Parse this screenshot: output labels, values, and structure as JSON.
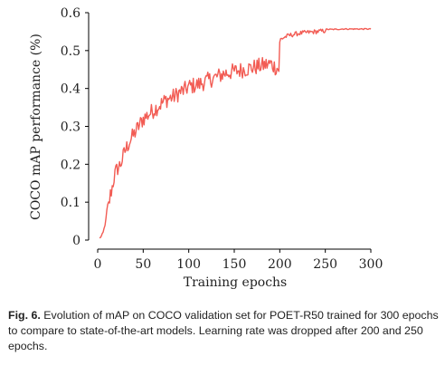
{
  "chart_data": {
    "type": "line",
    "xlabel": "Training epochs",
    "ylabel": "COCO mAP performance (%)",
    "xlim": [
      0,
      300
    ],
    "ylim": [
      0,
      0.6
    ],
    "x_ticks": [
      "0",
      "50",
      "100",
      "150",
      "200",
      "250",
      "300"
    ],
    "y_ticks": [
      "0",
      "0.1",
      "0.2",
      "0.3",
      "0.4",
      "0.5",
      "0.6"
    ],
    "grid": false,
    "line_color": "#f25c54",
    "series": [
      {
        "x": [
          2,
          4,
          6,
          8,
          10,
          12,
          14,
          16,
          18,
          20,
          22,
          25,
          28,
          30,
          35,
          40,
          45,
          50,
          55,
          60,
          65,
          70,
          75,
          80,
          85,
          90,
          95,
          100,
          110,
          120,
          130,
          140,
          150,
          160,
          170,
          180,
          190,
          199,
          200,
          201,
          205,
          210,
          220,
          230,
          240,
          250,
          251,
          260,
          270,
          280,
          290,
          300
        ],
        "values": [
          0.005,
          0.01,
          0.02,
          0.04,
          0.07,
          0.09,
          0.12,
          0.14,
          0.165,
          0.18,
          0.19,
          0.2,
          0.22,
          0.235,
          0.26,
          0.28,
          0.3,
          0.32,
          0.33,
          0.34,
          0.35,
          0.36,
          0.37,
          0.375,
          0.38,
          0.39,
          0.395,
          0.405,
          0.41,
          0.42,
          0.43,
          0.44,
          0.445,
          0.45,
          0.455,
          0.46,
          0.465,
          0.45,
          0.52,
          0.53,
          0.535,
          0.54,
          0.545,
          0.548,
          0.55,
          0.552,
          0.556,
          0.556,
          0.557,
          0.557,
          0.557,
          0.557
        ]
      }
    ]
  },
  "caption": {
    "label": "Fig. 6.",
    "text": "Evolution of mAP on COCO validation set for POET-R50 trained for 300 epochs to compare to state-of-the-art models. Learning rate was dropped after 200 and 250 epochs."
  }
}
